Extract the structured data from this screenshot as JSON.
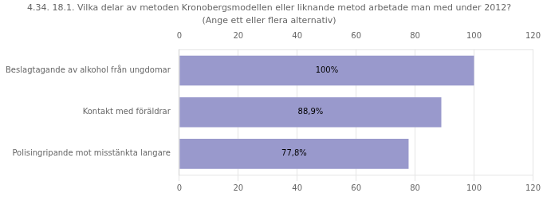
{
  "chart_data": {
    "type": "bar",
    "orientation": "horizontal",
    "title": "4.34. 18.1. Vilka delar av metoden Kronobergsmodellen eller liknande metod arbetade man med under 2012?",
    "subtitle": "(Ange ett eller flera alternativ)",
    "categories": [
      "Beslagtagande av alkohol från ungdomar",
      "Kontakt med föräldrar",
      "Polisingripande mot misstänkta langare"
    ],
    "values": [
      100,
      88.9,
      77.8
    ],
    "value_labels": [
      "100%",
      "88,9%",
      "77,8%"
    ],
    "data_labels": true,
    "color": "#9999cc",
    "xlim": [
      0,
      120
    ],
    "xticks": [
      0,
      20,
      40,
      60,
      80,
      100,
      120
    ],
    "grid": true
  }
}
